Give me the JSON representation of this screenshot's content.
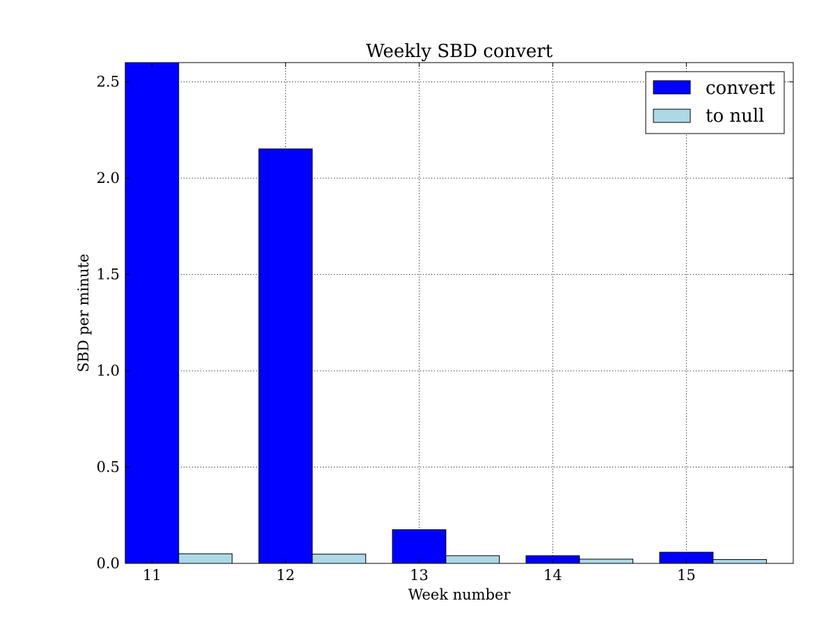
{
  "chart_data": {
    "type": "bar",
    "title": "Weekly SBD convert",
    "xlabel": "Week number",
    "ylabel": "SBD per minute",
    "categories": [
      "11",
      "12",
      "13",
      "14",
      "15"
    ],
    "series": [
      {
        "name": "convert",
        "color": "#0000ff",
        "values": [
          2.7,
          2.152,
          0.175,
          0.04,
          0.058
        ]
      },
      {
        "name": "to null",
        "color": "#add8e6",
        "values": [
          0.05,
          0.048,
          0.04,
          0.022,
          0.02
        ]
      }
    ],
    "ylim": [
      0,
      2.6
    ],
    "yticks": [
      "0.0",
      "0.5",
      "1.0",
      "1.5",
      "2.0",
      "2.5"
    ],
    "grid": true,
    "legend_position": "top-right"
  }
}
